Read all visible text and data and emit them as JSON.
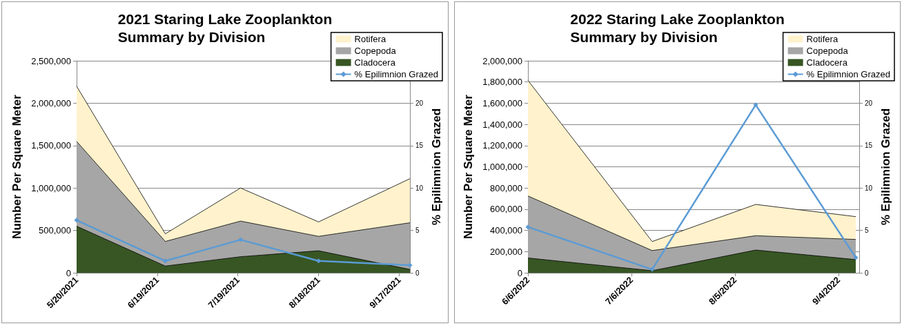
{
  "chart_data": [
    {
      "type": "area",
      "title": "2021 Staring Lake Zooplankton\nSummary by Division",
      "ylabel": "Number Per Square Meter",
      "y2label": "% Epilimnion Grazed",
      "stacked": true,
      "grid": "y",
      "legend": "top right",
      "x": [
        "2021-05-20",
        "2021-06-22",
        "2021-07-20",
        "2021-08-18",
        "2021-09-21"
      ],
      "xlim": [
        "2021-05-20",
        "2021-09-21"
      ],
      "xticks": [
        {
          "value": "2021-05-20",
          "label": "5/20/2021"
        },
        {
          "value": "2021-06-19",
          "label": "6/19/2021"
        },
        {
          "value": "2021-07-19",
          "label": "7/19/2021"
        },
        {
          "value": "2021-08-18",
          "label": "8/18/2021"
        },
        {
          "value": "2021-09-17",
          "label": "9/17/2021"
        }
      ],
      "ylim": [
        0,
        2500000
      ],
      "yticks": [
        0,
        {
          "value": 500000,
          "label": "500,000"
        },
        {
          "value": 1000000,
          "label": "1,000,000"
        },
        {
          "value": 1500000,
          "label": "1,500,000"
        },
        {
          "value": 2000000,
          "label": "2,000,000"
        },
        {
          "value": 2500000,
          "label": "2,500,000"
        }
      ],
      "y2lim": [
        0,
        25
      ],
      "y2ticks": [
        0,
        5,
        10,
        15,
        20
      ],
      "series": [
        {
          "name": "Cladocera",
          "color": "#375623",
          "values": [
            550000,
            80000,
            190000,
            260000,
            40000
          ]
        },
        {
          "name": "Copepoda",
          "color": "#a6a6a6",
          "values": [
            1000000,
            290000,
            420000,
            170000,
            550000
          ]
        },
        {
          "name": "Rotifera",
          "color": "#fff2cc",
          "values": [
            650000,
            90000,
            390000,
            170000,
            520000
          ]
        },
        {
          "name": "% Epilimnion Grazed",
          "type": "line",
          "axis": "y2",
          "marker": "diamond",
          "color": "#5b9bd5",
          "values": [
            6.2,
            1.4,
            3.9,
            1.4,
            0.9
          ]
        }
      ]
    },
    {
      "type": "area",
      "title": "2022 Staring Lake Zooplankton\nSummary by Division",
      "ylabel": "Number Per Square Meter",
      "y2label": "% Epilimnion Grazed",
      "stacked": true,
      "grid": "y",
      "legend": "top right",
      "x": [
        "2022-06-06",
        "2022-07-12",
        "2022-08-11",
        "2022-09-09"
      ],
      "xlim": [
        "2022-06-06",
        "2022-09-10"
      ],
      "xticks": [
        {
          "value": "2022-06-06",
          "label": "6/6/2022"
        },
        {
          "value": "2022-07-06",
          "label": "7/6/2022"
        },
        {
          "value": "2022-08-05",
          "label": "8/5/2022"
        },
        {
          "value": "2022-09-04",
          "label": "9/4/2022"
        }
      ],
      "ylim": [
        0,
        2000000
      ],
      "yticks": [
        0,
        {
          "value": 200000,
          "label": "200,000"
        },
        {
          "value": 400000,
          "label": "400,000"
        },
        {
          "value": 600000,
          "label": "600,000"
        },
        {
          "value": 800000,
          "label": "800,000"
        },
        {
          "value": 1000000,
          "label": "1,000,000"
        },
        {
          "value": 1200000,
          "label": "1,200,000"
        },
        {
          "value": 1400000,
          "label": "1,400,000"
        },
        {
          "value": 1600000,
          "label": "1,600,000"
        },
        {
          "value": 1800000,
          "label": "1,800,000"
        },
        {
          "value": 2000000,
          "label": "2,000,000"
        }
      ],
      "y2lim": [
        0,
        25
      ],
      "y2ticks": [
        0,
        5,
        10,
        15,
        20
      ],
      "series": [
        {
          "name": "Cladocera",
          "color": "#375623",
          "values": [
            140000,
            20000,
            215000,
            125000
          ]
        },
        {
          "name": "Copepoda",
          "color": "#a6a6a6",
          "values": [
            585000,
            190000,
            135000,
            190000
          ]
        },
        {
          "name": "Rotifera",
          "color": "#fff2cc",
          "values": [
            1090000,
            85000,
            295000,
            215000
          ]
        },
        {
          "name": "% Epilimnion Grazed",
          "type": "line",
          "axis": "y2",
          "marker": "diamond",
          "color": "#5b9bd5",
          "values": [
            5.4,
            0.4,
            19.8,
            1.8
          ]
        }
      ]
    }
  ]
}
